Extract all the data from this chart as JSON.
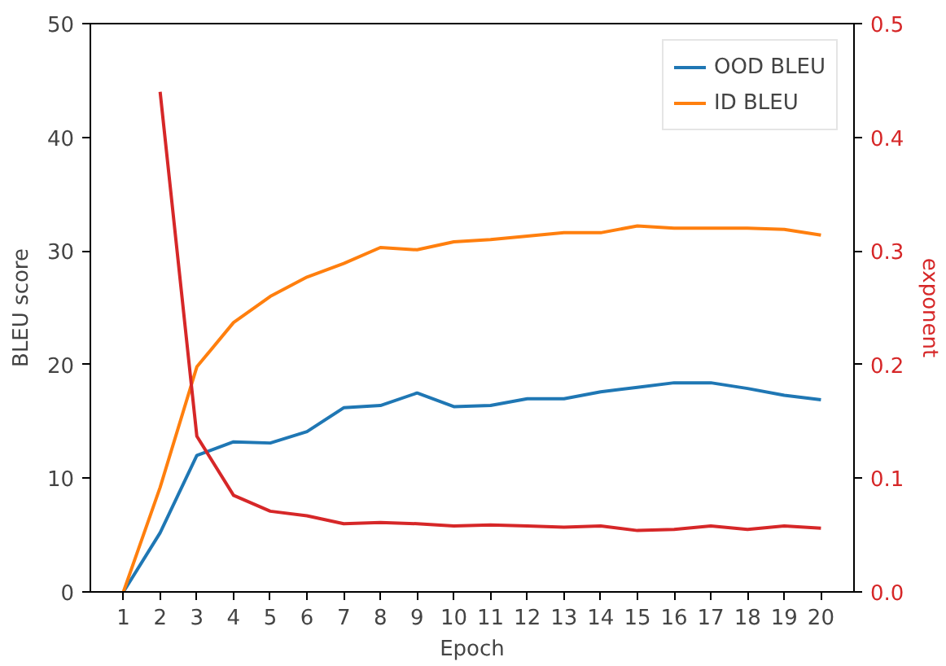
{
  "chart_data": {
    "type": "line",
    "xlabel": "Epoch",
    "ylabel": "BLEU score",
    "y2label": "exponent",
    "x": [
      1,
      2,
      3,
      4,
      5,
      6,
      7,
      8,
      9,
      10,
      11,
      12,
      13,
      14,
      15,
      16,
      17,
      18,
      19,
      20
    ],
    "xlim": [
      0.1,
      20.9
    ],
    "xticks": [
      1,
      2,
      3,
      4,
      5,
      6,
      7,
      8,
      9,
      10,
      11,
      12,
      13,
      14,
      15,
      16,
      17,
      18,
      19,
      20
    ],
    "ylim": [
      0,
      50
    ],
    "yticks": [
      0,
      10,
      20,
      30,
      40,
      50
    ],
    "y2lim": [
      0,
      0.5
    ],
    "y2ticks": [
      {
        "value": 0,
        "label": "0.0"
      },
      {
        "value": 0.1,
        "label": "0.1"
      },
      {
        "value": 0.2,
        "label": "0.2"
      },
      {
        "value": 0.3,
        "label": "0.3"
      },
      {
        "value": 0.4,
        "label": "0.4"
      },
      {
        "value": 0.5,
        "label": "0.5"
      }
    ],
    "series": [
      {
        "name": "OOD BLEU",
        "color": "#1f77b4",
        "values": [
          0,
          5.2,
          12,
          13.2,
          13.1,
          14.1,
          16.2,
          16.4,
          17.5,
          16.3,
          16.4,
          17,
          17,
          17.6,
          18,
          18.4,
          18.4,
          17.9,
          17.3,
          16.9
        ]
      },
      {
        "name": "ID BLEU",
        "color": "#ff7f0e",
        "values": [
          0,
          9.2,
          19.8,
          23.7,
          26,
          27.7,
          28.9,
          30.3,
          30.1,
          30.8,
          31,
          31.3,
          31.6,
          31.6,
          32.2,
          32,
          32,
          32,
          31.9,
          31.4
        ]
      },
      {
        "color": "#d62728",
        "axis": "y2",
        "values": [
          null,
          0.44,
          0.137,
          0.085,
          0.071,
          0.067,
          0.06,
          0.061,
          0.06,
          0.058,
          0.059,
          0.058,
          0.057,
          0.058,
          0.054,
          0.055,
          0.058,
          0.055,
          0.058,
          0.056
        ]
      }
    ],
    "grid": false,
    "legend": "top right"
  }
}
